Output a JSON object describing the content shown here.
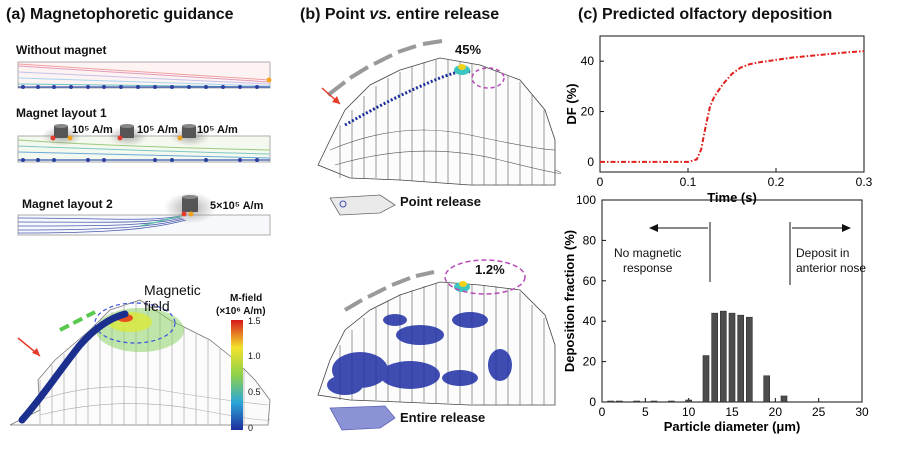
{
  "panel_a": {
    "title": "(a) Magnetophoretic guidance",
    "without_magnet": "Without magnet",
    "layout1": "Magnet layout 1",
    "layout1_labels": [
      "10⁵ A/m",
      "10⁵ A/m",
      "10⁵ A/m"
    ],
    "layout2": "Magnet layout 2",
    "layout2_label": "5×10⁵ A/m",
    "field_label": "Magnetic field",
    "colorbar_title_1": "M-field",
    "colorbar_title_2": "(×10⁶ A/m)",
    "colorbar_ticks": [
      "1.5",
      "1.0",
      "0.5",
      "0"
    ]
  },
  "panel_b": {
    "title": "(b) Point vs. entire release",
    "title_pre": "(b) Point ",
    "title_vs": "vs.",
    "title_post": " entire release",
    "point_pct": "45%",
    "point_label": "Point release",
    "entire_pct": "1.2%",
    "entire_label": "Entire release"
  },
  "panel_c": {
    "title": "(c) Predicted olfactory deposition",
    "annot_left": [
      "No magnetic",
      "response"
    ],
    "annot_right": [
      "Deposit in",
      "anterior nose"
    ]
  },
  "chart_data": [
    {
      "type": "line",
      "xlabel": "Time (s)",
      "ylabel": "DF (%)",
      "xlim": [
        0,
        0.3
      ],
      "ylim": [
        -4,
        50
      ],
      "xticks": [
        "0",
        "0.1",
        "0.2",
        "0.3"
      ],
      "yticks": [
        "0",
        "20",
        "40"
      ],
      "color": "#e0201b",
      "x": [
        0,
        0.05,
        0.1,
        0.11,
        0.115,
        0.12,
        0.125,
        0.13,
        0.14,
        0.15,
        0.16,
        0.17,
        0.18,
        0.2,
        0.22,
        0.25,
        0.28,
        0.3
      ],
      "y": [
        0,
        0,
        0,
        1,
        5,
        14,
        22,
        26,
        31,
        35,
        37.5,
        38.8,
        39.5,
        40.5,
        41.5,
        42.5,
        43.5,
        44
      ]
    },
    {
      "type": "bar",
      "xlabel": "Particle diameter (μm)",
      "ylabel": "Deposition fraction (%)",
      "xlim": [
        0,
        30
      ],
      "ylim": [
        0,
        100
      ],
      "xticks": [
        "0",
        "5",
        "10",
        "15",
        "20",
        "25",
        "30"
      ],
      "yticks": [
        "0",
        "20",
        "40",
        "60",
        "80",
        "100"
      ],
      "color": "#4d4d4d",
      "x": [
        1,
        2,
        4,
        6,
        8,
        10,
        12,
        13,
        14,
        15,
        16,
        17,
        19,
        21
      ],
      "values": [
        0.5,
        0.5,
        0.5,
        0.5,
        0.5,
        1,
        23,
        44,
        45,
        44,
        43,
        42,
        13,
        3
      ]
    }
  ]
}
